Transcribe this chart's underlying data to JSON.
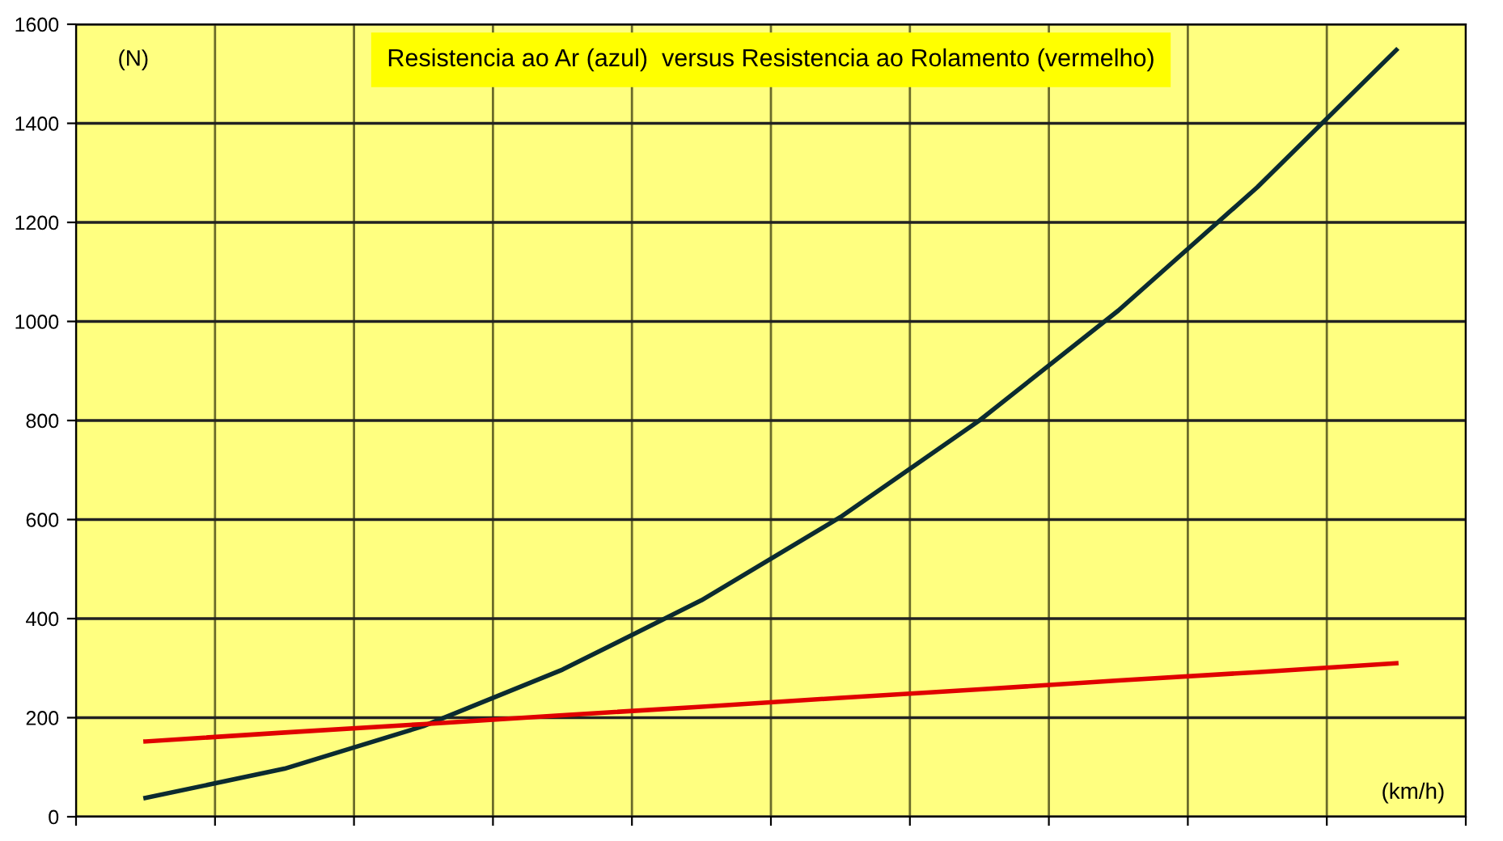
{
  "chart_data": {
    "type": "line",
    "title": "Resistencia ao Ar (azul)  versus Resistencia ao Rolamento (vermelho)",
    "categories": [
      null,
      null,
      null,
      null,
      null,
      null,
      null,
      null,
      null,
      null
    ],
    "series": [
      {
        "color": "#0b2b30",
        "values": [
          38,
          97,
          183,
          297,
          437,
          605,
          800,
          1022,
          1271,
          1548
        ]
      },
      {
        "color": "#e00000",
        "values": [
          152,
          170,
          187,
          205,
          222,
          240,
          257,
          275,
          292,
          310
        ]
      }
    ],
    "ylim": [
      0,
      1600
    ],
    "yticks": [
      0,
      200,
      400,
      600,
      800,
      1000,
      1200,
      1400,
      1600
    ],
    "annotations": [
      "(N)",
      "(km/h)"
    ],
    "grid": true,
    "marker": "none",
    "line_style": "solid"
  }
}
